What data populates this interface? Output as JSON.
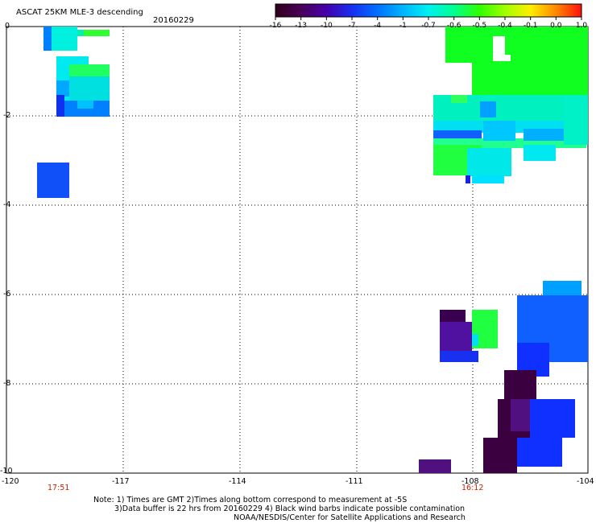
{
  "title": "ASCAT 25KM MLE-3 descending",
  "date": "20160229",
  "colorbar": {
    "labels": [
      "-16",
      "-13",
      "-10",
      "-7",
      "-4",
      "-1",
      "-0.7",
      "-0.6",
      "-0.5",
      "-0.4",
      "-0.1",
      "0.0",
      "1.0"
    ],
    "colors": [
      "#300018",
      "#4a0058",
      "#4400aa",
      "#1830f0",
      "#0070ff",
      "#00b4ff",
      "#00f0f0",
      "#00ff90",
      "#30ff00",
      "#a0ff00",
      "#ffee00",
      "#ff8800",
      "#ff1010"
    ]
  },
  "axes": {
    "y_ticks": [
      "0",
      "-2",
      "-4",
      "-6",
      "-8",
      "-10"
    ],
    "x_ticks": [
      "-120",
      "-117",
      "-114",
      "-111",
      "-108",
      "-104"
    ]
  },
  "times": [
    "17:51",
    "16:12"
  ],
  "notes": [
    "Note: 1) Times are GMT 2)Times along bottom correspond to measurement at -5S",
    "3)Data buffer is 22 hrs from 20160229 4) Black wind barbs indicate possible contamination",
    "NOAA/NESDIS/Center for Satellite Applications and Research"
  ],
  "palette": {
    "darkPurple": "#3a0040",
    "purple": "#501090",
    "blue": "#1040ff",
    "midBlue": "#0060ff",
    "skyBlue": "#00a0ff",
    "cyan": "#00f0f0",
    "aqua": "#00e8d0",
    "green": "#10ff20",
    "brightGreen": "#30ff40"
  }
}
